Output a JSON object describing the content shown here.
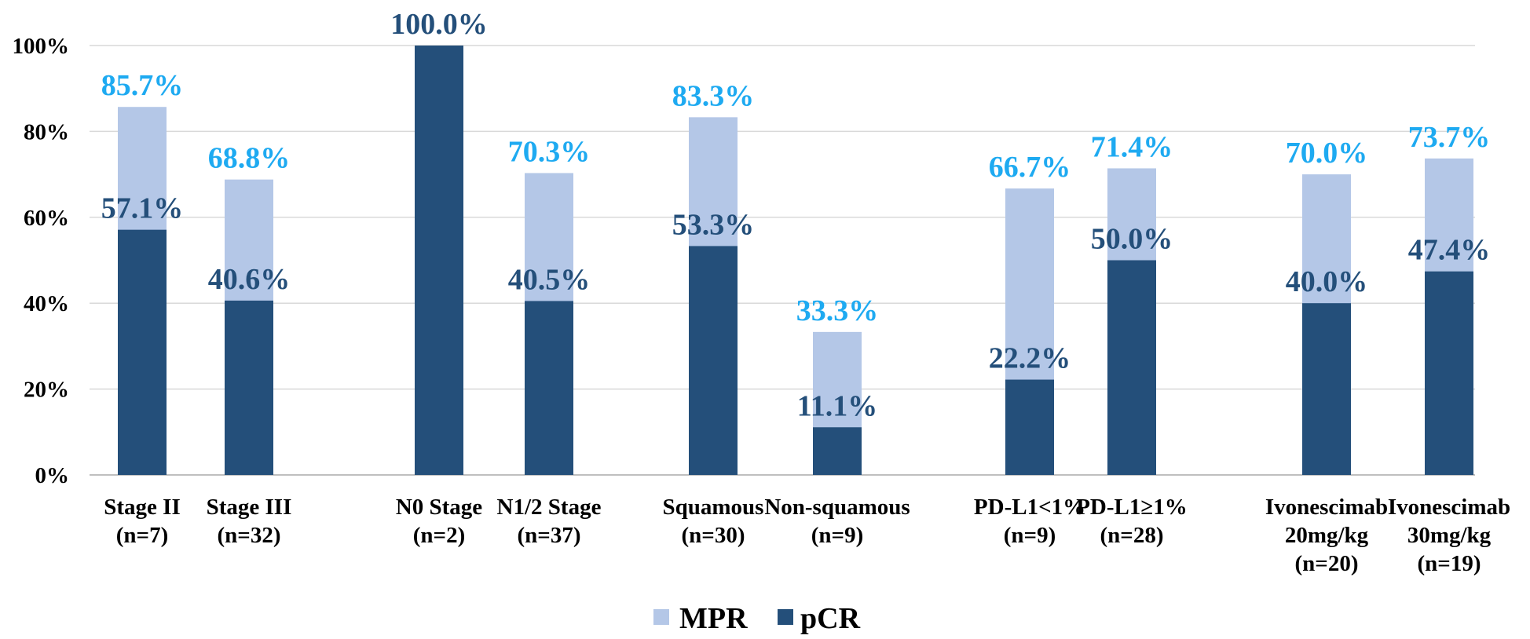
{
  "chart_data": {
    "type": "bar",
    "stacking": "overlay",
    "ylim": [
      0,
      100
    ],
    "yticks": [
      "0%",
      "20%",
      "40%",
      "60%",
      "80%",
      "100%"
    ],
    "ytick_values": [
      0,
      20,
      40,
      60,
      80,
      100
    ],
    "grid": true,
    "legend_position": "bottom",
    "categories": [
      [
        "Stage II",
        "(n=7)"
      ],
      [
        "Stage III",
        "(n=32)"
      ],
      [
        "N0 Stage",
        "(n=2)"
      ],
      [
        "N1/2 Stage",
        "(n=37)"
      ],
      [
        "Squamous",
        "(n=30)"
      ],
      [
        "Non-squamous",
        "(n=9)"
      ],
      [
        "PD-L1<1%",
        "(n=9)"
      ],
      [
        "PD-L1≥1%",
        "(n=28)"
      ],
      [
        "Ivonescimab",
        "20mg/kg",
        "(n=20)"
      ],
      [
        "Ivonescimab",
        "30mg/kg",
        "(n=19)"
      ]
    ],
    "series": [
      {
        "name": "MPR",
        "color": "#b4c7e7",
        "label_color": "#1eaaf1",
        "values": [
          85.7,
          68.8,
          100.0,
          70.3,
          83.3,
          33.3,
          66.7,
          71.4,
          70.0,
          73.7
        ],
        "labels": [
          "85.7%",
          "68.8%",
          "",
          "70.3%",
          "83.3%",
          "33.3%",
          "66.7%",
          "71.4%",
          "70.0%",
          "73.7%"
        ]
      },
      {
        "name": "pCR",
        "color": "#244f7a",
        "label_color": "#244f7a",
        "values": [
          57.1,
          40.6,
          100.0,
          40.5,
          53.3,
          11.1,
          22.2,
          50.0,
          40.0,
          47.4
        ],
        "labels": [
          "57.1%",
          "40.6%",
          "100.0%",
          "40.5%",
          "53.3%",
          "11.1%",
          "22.2%",
          "50.0%",
          "40.0%",
          "47.4%"
        ]
      }
    ]
  }
}
